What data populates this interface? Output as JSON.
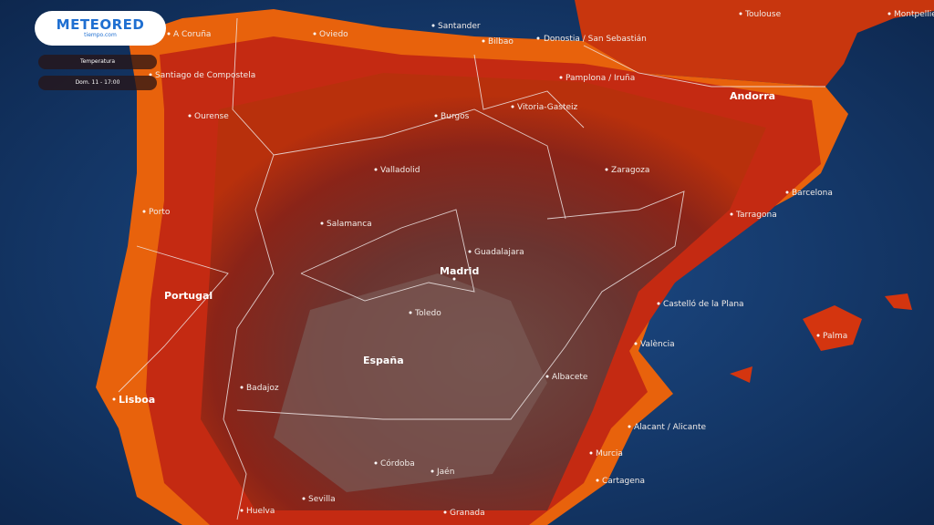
{
  "header": {
    "logo": "METEORED",
    "logo_sub": "tiempo.com"
  },
  "legend": {
    "layer": "Temperatura",
    "time": "Dom. 11 - 17:00"
  },
  "labels": [
    "A Coruña",
    "Oviedo",
    "Santander",
    "Bilbao",
    "Donostia / San Sebastián",
    "Santiago de Compostela",
    "Pamplona / Iruña",
    "Vitoria-Gasteiz",
    "Ourense",
    "Burgos",
    "Toulouse",
    "Montpellier",
    "Andorra",
    "Zaragoza",
    "Valladolid",
    "Barcelona",
    "Tarragona",
    "Porto",
    "Salamanca",
    "Guadalajara",
    "Madrid",
    "Portugal",
    "Toledo",
    "Castelló de la Plana",
    "València",
    "Palma",
    "España",
    "Albacete",
    "Badajoz",
    "Lisboa",
    "Alacant / Alicante",
    "Murcia",
    "Córdoba",
    "Jaén",
    "Cartagena",
    "Sevilla",
    "Huelva",
    "Granada"
  ]
}
